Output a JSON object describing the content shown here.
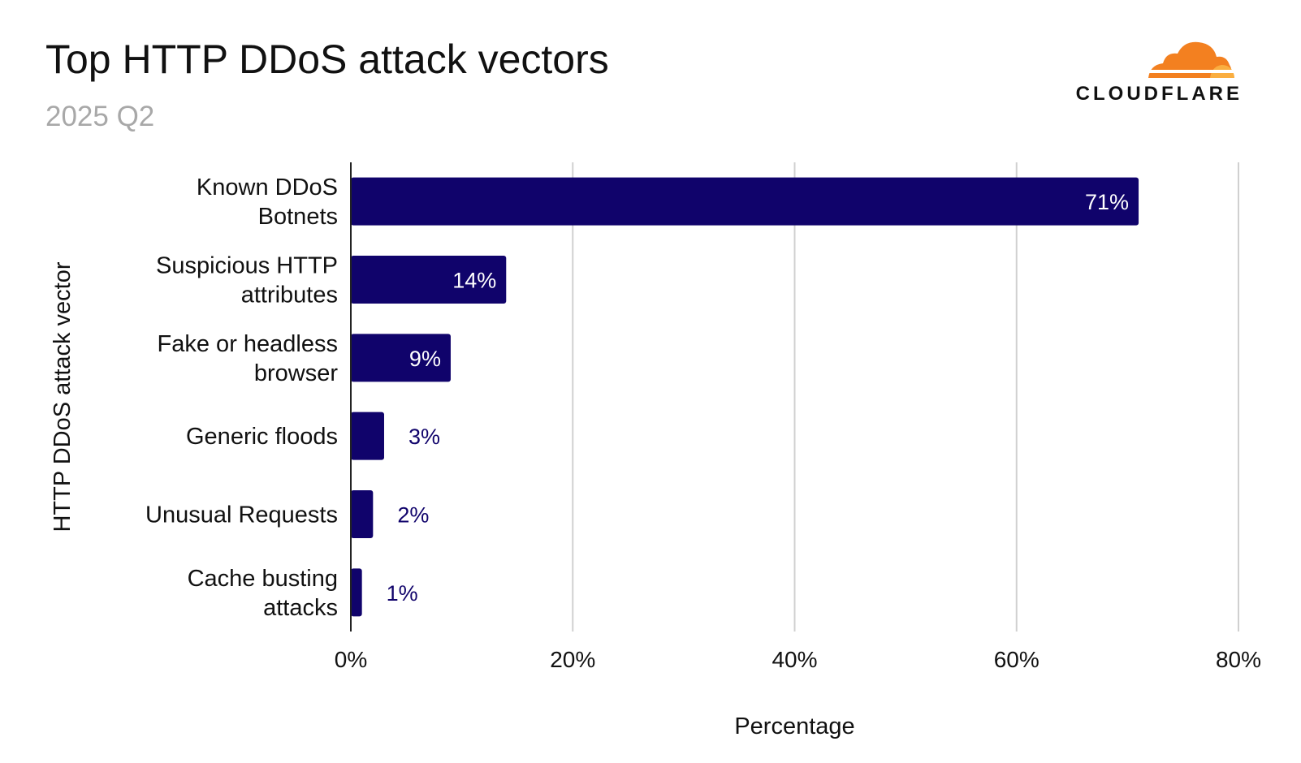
{
  "title": "Top HTTP DDoS attack vectors",
  "subtitle": "2025 Q2",
  "logo": {
    "wordmark": "CLOUDFLARE",
    "colors": [
      "#f38020",
      "#faae40"
    ]
  },
  "colors": {
    "bar": "#10036b",
    "label_outside": "#10036b",
    "label_inside": "#ffffff",
    "grid": "#d0d0d0"
  },
  "chart_data": {
    "type": "bar",
    "orientation": "horizontal",
    "title": "Top HTTP DDoS attack vectors",
    "subtitle": "2025 Q2",
    "xlabel": "Percentage",
    "ylabel": "HTTP DDoS attack vector",
    "categories": [
      [
        "Known DDoS",
        "Botnets"
      ],
      [
        "Suspicious HTTP",
        "attributes"
      ],
      [
        "Fake or headless",
        "browser"
      ],
      [
        "Generic floods"
      ],
      [
        "Unusual Requests"
      ],
      [
        "Cache busting",
        "attacks"
      ]
    ],
    "values": [
      71,
      14,
      9,
      3,
      2,
      1
    ],
    "value_labels": [
      "71%",
      "14%",
      "9%",
      "3%",
      "2%",
      "1%"
    ],
    "xlim": [
      0,
      80
    ],
    "xticks": [
      0,
      20,
      40,
      60,
      80
    ],
    "xtick_labels": [
      "0%",
      "20%",
      "40%",
      "60%",
      "80%"
    ],
    "grid": "vertical",
    "legend": "none"
  }
}
